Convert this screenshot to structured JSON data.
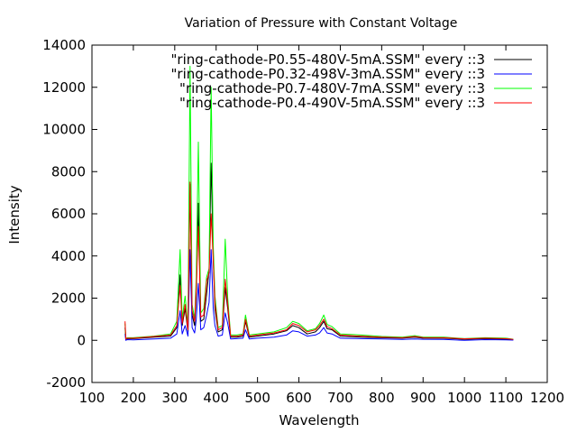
{
  "chart_data": {
    "type": "line",
    "title": "Variation of Pressure with Constant Voltage",
    "xlabel": "Wavelength",
    "ylabel": "Intensity",
    "xlim": [
      100,
      1200
    ],
    "ylim": [
      -2000,
      14000
    ],
    "x_ticks": [
      100,
      200,
      300,
      400,
      500,
      600,
      700,
      800,
      900,
      1000,
      1100,
      1200
    ],
    "y_ticks": [
      -2000,
      0,
      2000,
      4000,
      6000,
      8000,
      10000,
      12000,
      14000
    ],
    "x_tick_labels": [
      "100",
      "200",
      "300",
      "400",
      "500",
      "600",
      "700",
      "800",
      "900",
      "1000",
      "1100",
      "1200"
    ],
    "y_tick_labels": [
      "-2000",
      "0",
      "2000",
      "4000",
      "6000",
      "8000",
      "10000",
      "12000",
      "14000"
    ],
    "legend_position": "top-right",
    "series": [
      {
        "name": "\"ring-cathode-P0.55-480V-5mA.SSM\" every ::3",
        "color": "#000000",
        "x": [
          180,
          182,
          185,
          200,
          250,
          290,
          305,
          313,
          318,
          325,
          332,
          337,
          342,
          348,
          352,
          357,
          363,
          370,
          377,
          383,
          388,
          393,
          397,
          405,
          415,
          422,
          428,
          435,
          450,
          465,
          471,
          480,
          500,
          540,
          570,
          585,
          600,
          620,
          640,
          650,
          660,
          668,
          680,
          700,
          750,
          800,
          850,
          880,
          900,
          950,
          1000,
          1050,
          1100,
          1118
        ],
        "y": [
          600,
          50,
          80,
          80,
          150,
          200,
          600,
          3100,
          700,
          1500,
          400,
          7400,
          1200,
          700,
          2200,
          6500,
          900,
          1000,
          2200,
          3300,
          8400,
          4000,
          1500,
          400,
          500,
          2500,
          1500,
          150,
          150,
          200,
          900,
          150,
          200,
          300,
          450,
          700,
          600,
          300,
          400,
          600,
          900,
          550,
          500,
          200,
          150,
          120,
          100,
          150,
          100,
          100,
          50,
          80,
          50,
          30
        ]
      },
      {
        "name": "\"ring-cathode-P0.32-498V-3mA.SSM\" every ::3",
        "color": "#0000ff",
        "x": [
          180,
          182,
          185,
          200,
          250,
          290,
          305,
          313,
          318,
          325,
          332,
          337,
          342,
          348,
          352,
          357,
          363,
          370,
          377,
          383,
          388,
          393,
          397,
          405,
          415,
          422,
          428,
          435,
          450,
          465,
          471,
          480,
          500,
          540,
          570,
          585,
          600,
          620,
          640,
          650,
          660,
          668,
          680,
          700,
          750,
          800,
          850,
          880,
          900,
          950,
          1000,
          1050,
          1100,
          1118
        ],
        "y": [
          300,
          0,
          30,
          20,
          60,
          100,
          300,
          1400,
          300,
          700,
          200,
          4300,
          600,
          350,
          1000,
          2700,
          500,
          600,
          1200,
          1800,
          4300,
          1500,
          700,
          200,
          250,
          1300,
          800,
          60,
          80,
          100,
          500,
          60,
          100,
          150,
          250,
          450,
          400,
          200,
          250,
          350,
          600,
          350,
          300,
          100,
          80,
          60,
          40,
          60,
          50,
          40,
          0,
          30,
          20,
          10
        ]
      },
      {
        "name": "\"ring-cathode-P0.7-480V-7mA.SSM\" every ::3",
        "color": "#00ff00",
        "x": [
          180,
          182,
          185,
          200,
          250,
          290,
          305,
          313,
          318,
          325,
          332,
          337,
          342,
          348,
          352,
          357,
          363,
          370,
          377,
          383,
          388,
          393,
          397,
          405,
          415,
          422,
          428,
          435,
          450,
          465,
          471,
          480,
          500,
          540,
          570,
          585,
          600,
          620,
          640,
          650,
          660,
          668,
          680,
          700,
          750,
          800,
          850,
          880,
          900,
          950,
          1000,
          1050,
          1100,
          1118
        ],
        "y": [
          800,
          80,
          120,
          120,
          200,
          300,
          900,
          4300,
          1000,
          2100,
          600,
          13000,
          1700,
          1000,
          3000,
          9400,
          1300,
          1500,
          3000,
          3400,
          12000,
          4500,
          2100,
          600,
          700,
          4800,
          2000,
          250,
          250,
          300,
          1200,
          250,
          300,
          400,
          600,
          900,
          800,
          450,
          550,
          800,
          1200,
          750,
          650,
          300,
          250,
          180,
          150,
          220,
          150,
          150,
          80,
          120,
          100,
          50
        ]
      },
      {
        "name": "\"ring-cathode-P0.4-490V-5mA.SSM\" every ::3",
        "color": "#ff0000",
        "x": [
          180,
          182,
          185,
          200,
          250,
          290,
          305,
          313,
          318,
          325,
          332,
          337,
          342,
          348,
          352,
          357,
          363,
          370,
          377,
          383,
          388,
          393,
          397,
          405,
          415,
          422,
          428,
          435,
          450,
          465,
          471,
          480,
          500,
          540,
          570,
          585,
          600,
          620,
          640,
          650,
          660,
          668,
          680,
          700,
          750,
          800,
          850,
          880,
          900,
          950,
          1000,
          1050,
          1100,
          1118
        ],
        "y": [
          900,
          60,
          100,
          100,
          180,
          250,
          700,
          2600,
          800,
          1700,
          500,
          7500,
          1400,
          900,
          2500,
          5400,
          1100,
          1200,
          2800,
          3200,
          6000,
          3800,
          1800,
          500,
          600,
          2900,
          1700,
          200,
          200,
          250,
          1000,
          200,
          250,
          350,
          500,
          800,
          700,
          400,
          500,
          700,
          1000,
          650,
          550,
          250,
          200,
          150,
          120,
          180,
          130,
          120,
          70,
          100,
          80,
          40
        ]
      }
    ]
  }
}
